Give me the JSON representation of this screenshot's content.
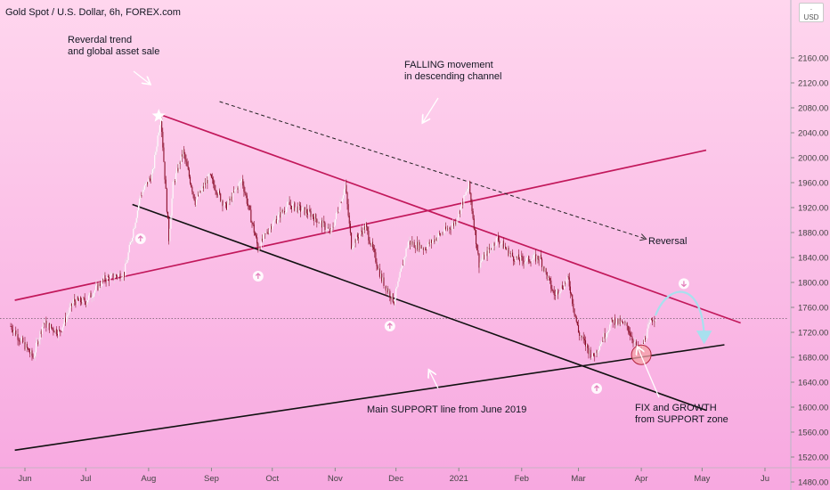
{
  "title": "Gold Spot / U.S. Dollar, 6h, FOREX.com",
  "currency_badge": {
    "line1": "·",
    "line2": "USD"
  },
  "colors": {
    "bg_top": "#ffd6ee",
    "bg_bottom": "#f7a8e0",
    "candle_up": "#ffffff",
    "candle_down": "#8b0f2a",
    "red_line": "#c2185b",
    "black_line": "#111111",
    "curve": "#a8e0ee"
  },
  "chart_data": {
    "type": "candlestick",
    "y_axis": {
      "min": 1460,
      "max": 2200,
      "ticks": [
        1480,
        1520,
        1560,
        1600,
        1640,
        1680,
        1720,
        1760,
        1800,
        1840,
        1880,
        1920,
        1960,
        2000,
        2040,
        2080,
        2120,
        2160
      ],
      "tick_labels": [
        "1480.00",
        "1520.00",
        "1560.00",
        "1600.00",
        "1640.00",
        "1680.00",
        "1720.00",
        "1760.00",
        "1800.00",
        "1840.00",
        "1880.00",
        "1920.00",
        "1960.00",
        "2000.00",
        "2040.00",
        "2080.00",
        "2120.00",
        "2160.00"
      ],
      "current_level": 1742
    },
    "x_axis": {
      "tick_labels": [
        "Jun",
        "Jul",
        "Aug",
        "Sep",
        "Oct",
        "Nov",
        "Dec",
        "2021",
        "Feb",
        "Mar",
        "Apr",
        "May",
        "Ju"
      ],
      "tick_dates": [
        "2020-06-01",
        "2020-07-01",
        "2020-08-01",
        "2020-09-01",
        "2020-10-01",
        "2020-11-01",
        "2020-12-01",
        "2021-01-01",
        "2021-02-01",
        "2021-03-01",
        "2021-04-01",
        "2021-05-01",
        "2021-06-01"
      ]
    },
    "price_path": [
      [
        "2020-05-25",
        1730
      ],
      [
        "2020-06-05",
        1680
      ],
      [
        "2020-06-10",
        1735
      ],
      [
        "2020-06-18",
        1720
      ],
      [
        "2020-06-25",
        1770
      ],
      [
        "2020-07-01",
        1770
      ],
      [
        "2020-07-10",
        1805
      ],
      [
        "2020-07-20",
        1815
      ],
      [
        "2020-07-28",
        1940
      ],
      [
        "2020-08-03",
        1975
      ],
      [
        "2020-08-07",
        2070
      ],
      [
        "2020-08-11",
        1870
      ],
      [
        "2020-08-13",
        1955
      ],
      [
        "2020-08-18",
        2010
      ],
      [
        "2020-08-24",
        1930
      ],
      [
        "2020-08-31",
        1970
      ],
      [
        "2020-09-08",
        1920
      ],
      [
        "2020-09-16",
        1965
      ],
      [
        "2020-09-24",
        1855
      ],
      [
        "2020-09-30",
        1890
      ],
      [
        "2020-10-09",
        1925
      ],
      [
        "2020-10-20",
        1910
      ],
      [
        "2020-10-30",
        1880
      ],
      [
        "2020-11-06",
        1955
      ],
      [
        "2020-11-09",
        1860
      ],
      [
        "2020-11-16",
        1890
      ],
      [
        "2020-11-24",
        1805
      ],
      [
        "2020-11-30",
        1770
      ],
      [
        "2020-12-07",
        1865
      ],
      [
        "2020-12-15",
        1855
      ],
      [
        "2020-12-22",
        1875
      ],
      [
        "2020-12-30",
        1895
      ],
      [
        "2021-01-06",
        1955
      ],
      [
        "2021-01-11",
        1830
      ],
      [
        "2021-01-20",
        1870
      ],
      [
        "2021-01-28",
        1840
      ],
      [
        "2021-02-02",
        1835
      ],
      [
        "2021-02-10",
        1840
      ],
      [
        "2021-02-17",
        1780
      ],
      [
        "2021-02-24",
        1805
      ],
      [
        "2021-03-01",
        1720
      ],
      [
        "2021-03-08",
        1680
      ],
      [
        "2021-03-18",
        1740
      ],
      [
        "2021-03-25",
        1730
      ],
      [
        "2021-03-31",
        1685
      ],
      [
        "2021-04-06",
        1740
      ],
      [
        "2021-04-08",
        1745
      ]
    ],
    "trend_lines": [
      {
        "name": "falling-channel-top",
        "color": "red",
        "from": [
          "2020-08-06",
          2070
        ],
        "to": [
          "2021-05-20",
          1735
        ]
      },
      {
        "name": "rising-red-line",
        "color": "red",
        "from": [
          "2020-05-25",
          1770
        ],
        "to": [
          "2021-05-03",
          2012
        ]
      },
      {
        "name": "falling-channel-bottom",
        "color": "black",
        "from": [
          "2020-07-24",
          1925
        ],
        "to": [
          "2021-05-03",
          1595
        ]
      },
      {
        "name": "main-support-line",
        "color": "black",
        "from": [
          "2020-05-25",
          1530
        ],
        "to": [
          "2021-05-12",
          1700
        ]
      },
      {
        "name": "falling-dashed-arrow",
        "color": "black-dashed",
        "from": [
          "2020-09-05",
          2090
        ],
        "to": [
          "2021-04-03",
          1870
        ]
      }
    ],
    "annotations": [
      {
        "lines": [
          "Reverdal trend",
          "and global asset sale"
        ]
      },
      {
        "lines": [
          "FALLING movement",
          "in descending channel"
        ]
      },
      {
        "lines": [
          "Reversal"
        ]
      },
      {
        "lines": [
          "Main SUPPORT line from June 2019"
        ]
      },
      {
        "lines": [
          "FIX and GROWTH",
          "from SUPPORT zone"
        ]
      }
    ]
  }
}
